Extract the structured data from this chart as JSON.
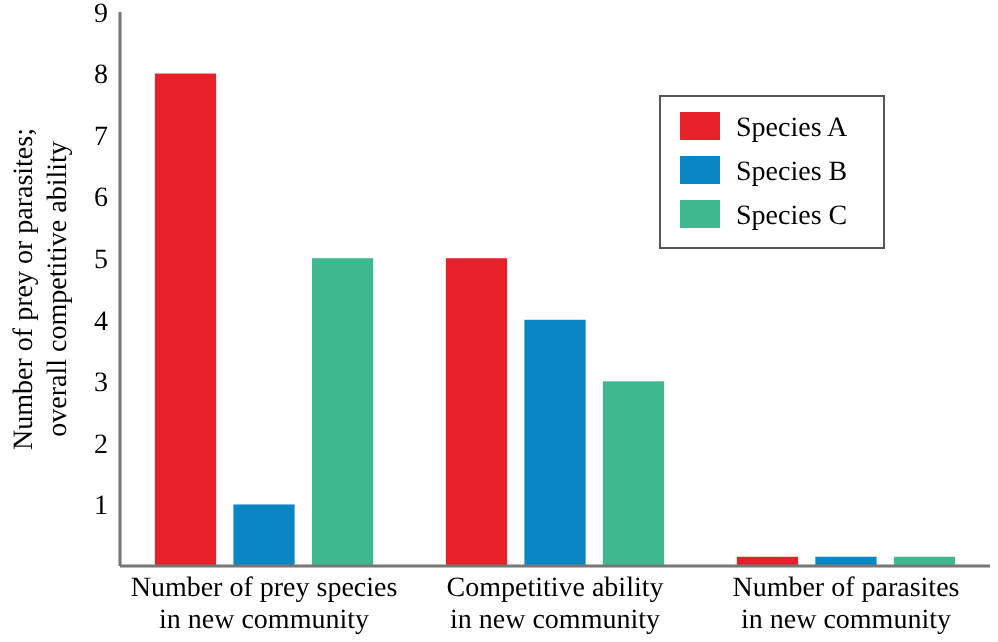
{
  "chart_data": {
    "type": "bar",
    "ylabel": "Number of prey or parasites;\noverall competitive ability",
    "categories": [
      "Number of prey species\nin new community",
      "Competitive ability\nin new community",
      "Number of parasites\nin new community"
    ],
    "series": [
      {
        "name": "Species A",
        "color": "#e8202a",
        "values": [
          8,
          5,
          0.15
        ]
      },
      {
        "name": "Species B",
        "color": "#0a86c4",
        "values": [
          1,
          4,
          0.15
        ]
      },
      {
        "name": "Species C",
        "color": "#3db88f",
        "values": [
          5,
          3,
          0.15
        ]
      }
    ],
    "ylim": [
      0,
      9
    ],
    "yticks": [
      1,
      2,
      3,
      4,
      5,
      6,
      7,
      8,
      9
    ],
    "grid": false,
    "legend": "top right"
  }
}
